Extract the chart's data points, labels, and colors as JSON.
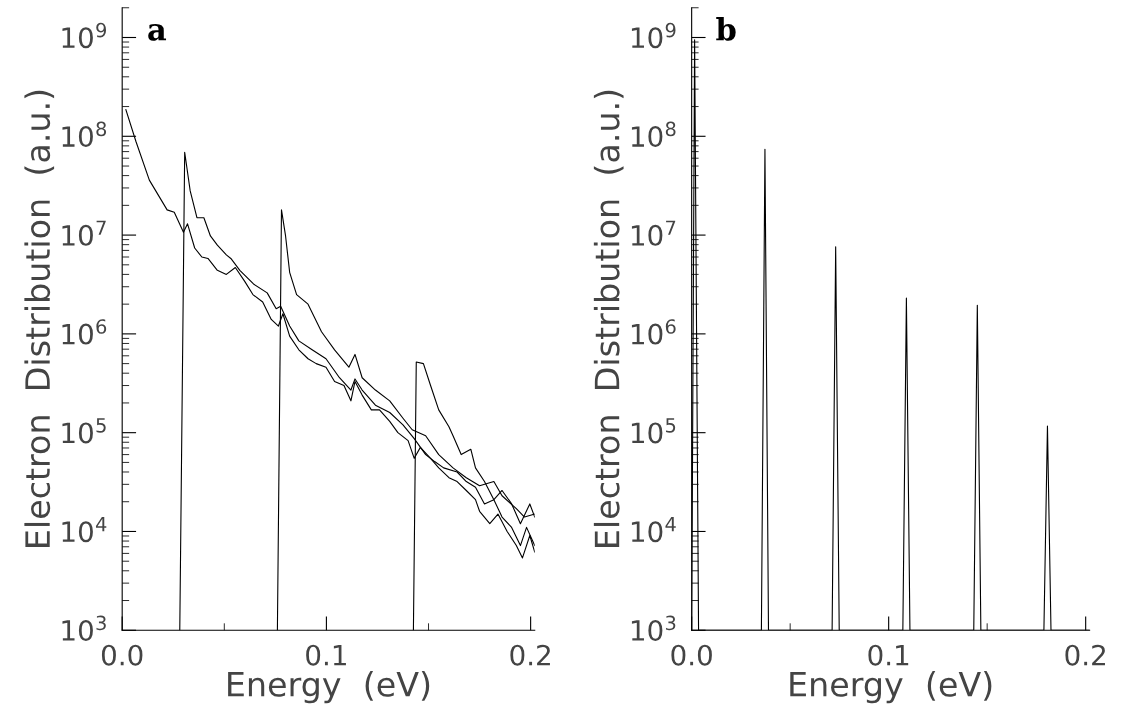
{
  "chart_data": [
    {
      "type": "line",
      "xlabel": "Energy  (eV)",
      "ylabel": "Electron  Distribution  (a.u.)",
      "annotations": [
        "a"
      ],
      "log": "y",
      "xlim": [
        0,
        0.202
      ],
      "ylim": [
        1000,
        2000000000
      ],
      "xticks": [
        {
          "value": 0,
          "label": "0.0"
        },
        {
          "value": 0.1,
          "label": "0.1"
        },
        {
          "value": 0.2,
          "label": "0.2"
        }
      ],
      "yticks": [
        {
          "value": 1000,
          "label": "10$^{3}$"
        },
        {
          "value": 10000,
          "label": "10$^{4}$"
        },
        {
          "value": 100000,
          "label": "10$^{5}$"
        },
        {
          "value": 1000000,
          "label": "10$^{6}$"
        },
        {
          "value": 10000000,
          "label": "10$^{7}$"
        },
        {
          "value": 100000000,
          "label": "10$^{8}$"
        },
        {
          "value": 1000000000,
          "label": "10$^{9}$"
        }
      ],
      "grid": false,
      "legend": false,
      "series": [
        {
          "color": "#000000",
          "x": [
            0.0018,
            0.0067,
            0.0133,
            0.022,
            0.0255,
            0.03,
            0.032,
            0.0355,
            0.039,
            0.042,
            0.0466,
            0.051,
            0.0554,
            0.06,
            0.064,
            0.0688,
            0.073,
            0.0765,
            0.0787,
            0.082,
            0.0865,
            0.091,
            0.095,
            0.0998,
            0.104,
            0.1086,
            0.112,
            0.114,
            0.1175,
            0.122,
            0.126,
            0.131,
            0.135,
            0.14,
            0.143,
            0.146,
            0.151,
            0.155,
            0.16,
            0.164,
            0.1685,
            0.173,
            0.175,
            0.18,
            0.184,
            0.1885,
            0.193,
            0.196,
            0.1996,
            0.202
          ],
          "values": [
            186000000,
            89000000,
            36000000,
            18000000,
            17000000,
            10700000,
            13000000,
            7400000,
            6000000,
            5800000,
            4400000,
            4000000,
            4700000,
            3400000,
            2500000,
            2100000,
            1400000,
            1200000,
            1600000,
            950000,
            690000,
            560000,
            500000,
            460000,
            330000,
            300000,
            210000,
            330000,
            240000,
            170000,
            170000,
            130000,
            100000,
            83000,
            55000,
            71000,
            55000,
            44000,
            35000,
            32000,
            26000,
            21000,
            16000,
            12000,
            15000,
            10000,
            7200,
            5400,
            9100,
            6200
          ]
        },
        {
          "color": "#000000",
          "x": [
            0.0282,
            0.0306,
            0.0333,
            0.0366,
            0.04,
            0.0432,
            0.0466,
            0.051,
            0.0532,
            0.0576,
            0.0643,
            0.071,
            0.0754,
            0.0776,
            0.082,
            0.0865,
            0.093,
            0.0998,
            0.1064,
            0.112,
            0.114,
            0.1175,
            0.124,
            0.131,
            0.1375,
            0.143,
            0.1486,
            0.153,
            0.1574,
            0.164,
            0.1685,
            0.173,
            0.1774,
            0.182,
            0.186,
            0.1907,
            0.195,
            0.198,
            0.202
          ],
          "values": [
            1000,
            69000000,
            28000000,
            15000000,
            15000000,
            9800000,
            7900000,
            6300000,
            5800000,
            4400000,
            3200000,
            2600000,
            1800000,
            1900000,
            1200000,
            850000,
            690000,
            560000,
            360000,
            270000,
            350000,
            270000,
            190000,
            160000,
            120000,
            87000,
            60000,
            51000,
            44000,
            40000,
            32000,
            28000,
            19000,
            21000,
            14000,
            11000,
            7200,
            11000,
            7200
          ]
        },
        {
          "color": "#000000",
          "x": [
            0.076,
            0.078,
            0.08,
            0.082,
            0.0854,
            0.091,
            0.0976,
            0.104,
            0.111,
            0.114,
            0.1175,
            0.124,
            0.131,
            0.1375,
            0.142,
            0.1486,
            0.155,
            0.162,
            0.1685,
            0.175,
            0.182,
            0.186,
            0.193,
            0.197,
            0.2018
          ],
          "values": [
            1000,
            18000000,
            9800000,
            4200000,
            2500000,
            2000000,
            1050000,
            690000,
            460000,
            620000,
            360000,
            270000,
            210000,
            140000,
            107000,
            93000,
            60000,
            44000,
            35000,
            29000,
            32000,
            23000,
            17000,
            14000,
            15000
          ]
        },
        {
          "color": "#000000",
          "x": [
            0.1426,
            0.144,
            0.1475,
            0.151,
            0.155,
            0.16,
            0.162,
            0.166,
            0.1707,
            0.173,
            0.1774,
            0.182,
            0.186,
            0.1907,
            0.195,
            0.1996,
            0.202
          ],
          "values": [
            1000,
            520000,
            500000,
            300000,
            170000,
            115000,
            93000,
            60000,
            68000,
            44000,
            32000,
            21000,
            26000,
            19000,
            12000,
            19000,
            14000
          ]
        }
      ]
    },
    {
      "type": "line",
      "xlabel": "Energy  (eV)",
      "ylabel": "Electron  Distribution  (a.u.)",
      "annotations": [
        "b"
      ],
      "log": "y",
      "xlim": [
        0,
        0.202
      ],
      "ylim": [
        1000,
        2000000000
      ],
      "xticks": [
        {
          "value": 0,
          "label": "0.0"
        },
        {
          "value": 0.1,
          "label": "0.1"
        },
        {
          "value": 0.2,
          "label": "0.2"
        }
      ],
      "yticks": [
        {
          "value": 1000,
          "label": "10$^{3}$"
        },
        {
          "value": 10000,
          "label": "10$^{4}$"
        },
        {
          "value": 100000,
          "label": "10$^{5}$"
        },
        {
          "value": 1000000,
          "label": "10$^{6}$"
        },
        {
          "value": 10000000,
          "label": "10$^{7}$"
        },
        {
          "value": 100000000,
          "label": "10$^{8}$"
        },
        {
          "value": 1000000000,
          "label": "10$^{9}$"
        }
      ],
      "grid": false,
      "legend": false,
      "series": [
        {
          "color": "#000000",
          "x": [
            0.0,
            0.0015,
            0.0035,
            0.0354,
            0.0372,
            0.039,
            0.0713,
            0.0731,
            0.0749,
            0.1072,
            0.109,
            0.1108,
            0.1432,
            0.145,
            0.1468,
            0.1788,
            0.1806,
            0.1824,
            0.202
          ],
          "values": [
            1000,
            950000000,
            1000,
            1000,
            74000000,
            1000,
            1000,
            7600000,
            1000,
            1000,
            2300000,
            1000,
            1000,
            1950000,
            1000,
            1000,
            117000,
            1000,
            1000
          ]
        }
      ]
    }
  ]
}
